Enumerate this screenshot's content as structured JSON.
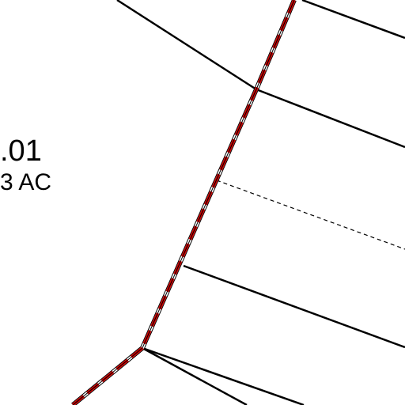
{
  "parcel": {
    "number": ".01",
    "area": "3 AC"
  }
}
